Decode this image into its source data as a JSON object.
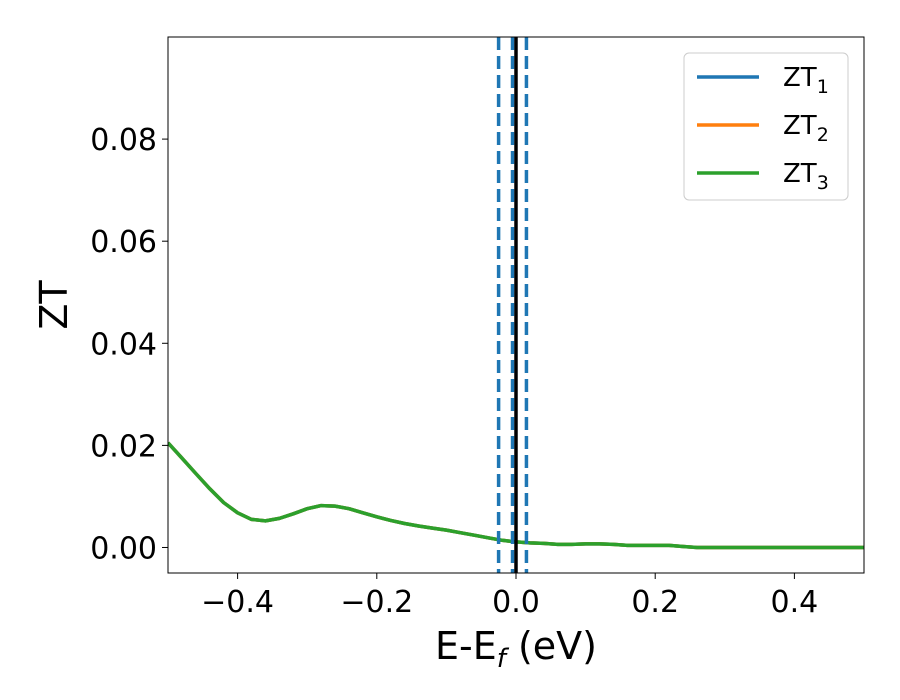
{
  "chart_data": {
    "type": "line",
    "title": "",
    "xlabel": "E-E",
    "xlabel_sub": "f",
    "xlabel_unit": " (eV)",
    "ylabel": "ZT",
    "xlim": [
      -0.5,
      0.5
    ],
    "ylim": [
      -0.005,
      0.1
    ],
    "xticks": [
      -0.4,
      -0.2,
      0.0,
      0.2,
      0.4
    ],
    "xtick_labels": [
      "−0.4",
      "−0.2",
      "0.0",
      "0.2",
      "0.4"
    ],
    "yticks": [
      0.0,
      0.02,
      0.04,
      0.06,
      0.08
    ],
    "ytick_labels": [
      "0.00",
      "0.02",
      "0.04",
      "0.06",
      "0.08"
    ],
    "grid": false,
    "legend_position": "top-right",
    "x": [
      -0.5,
      -0.48,
      -0.46,
      -0.44,
      -0.42,
      -0.4,
      -0.38,
      -0.36,
      -0.34,
      -0.32,
      -0.3,
      -0.28,
      -0.26,
      -0.24,
      -0.22,
      -0.2,
      -0.18,
      -0.16,
      -0.14,
      -0.12,
      -0.1,
      -0.08,
      -0.06,
      -0.04,
      -0.02,
      0.0,
      0.02,
      0.04,
      0.06,
      0.08,
      0.1,
      0.12,
      0.14,
      0.16,
      0.18,
      0.2,
      0.22,
      0.24,
      0.26,
      0.28,
      0.3,
      0.35,
      0.4,
      0.45,
      0.5
    ],
    "series": [
      {
        "name": "ZT",
        "name_sub": "1",
        "color": "#1f77b4",
        "values": [
          0.0205,
          0.0175,
          0.0145,
          0.0115,
          0.0088,
          0.0068,
          0.0055,
          0.0052,
          0.0057,
          0.0066,
          0.0076,
          0.0082,
          0.0081,
          0.0076,
          0.0068,
          0.006,
          0.0053,
          0.0047,
          0.0042,
          0.0038,
          0.0034,
          0.0029,
          0.0024,
          0.0019,
          0.0014,
          0.0011,
          0.0009,
          0.0008,
          0.0006,
          0.0006,
          0.0007,
          0.0007,
          0.0006,
          0.0004,
          0.0004,
          0.0004,
          0.0004,
          0.0002,
          0.0,
          0.0,
          0.0,
          0.0,
          0.0,
          0.0,
          0.0
        ]
      },
      {
        "name": "ZT",
        "name_sub": "2",
        "color": "#ff7f0e",
        "values": [
          0.0205,
          0.0175,
          0.0145,
          0.0115,
          0.0088,
          0.0068,
          0.0055,
          0.0052,
          0.0057,
          0.0066,
          0.0076,
          0.0082,
          0.0081,
          0.0076,
          0.0068,
          0.006,
          0.0053,
          0.0047,
          0.0042,
          0.0038,
          0.0034,
          0.0029,
          0.0024,
          0.0019,
          0.0014,
          0.0011,
          0.0009,
          0.0008,
          0.0006,
          0.0006,
          0.0007,
          0.0007,
          0.0006,
          0.0004,
          0.0004,
          0.0004,
          0.0004,
          0.0002,
          0.0,
          0.0,
          0.0,
          0.0,
          0.0,
          0.0,
          0.0
        ]
      },
      {
        "name": "ZT",
        "name_sub": "3",
        "color": "#2ca02c",
        "values": [
          0.0205,
          0.0175,
          0.0145,
          0.0115,
          0.0088,
          0.0068,
          0.0055,
          0.0052,
          0.0057,
          0.0066,
          0.0076,
          0.0082,
          0.0081,
          0.0076,
          0.0068,
          0.006,
          0.0053,
          0.0047,
          0.0042,
          0.0038,
          0.0034,
          0.0029,
          0.0024,
          0.0019,
          0.0014,
          0.0011,
          0.0009,
          0.0008,
          0.0006,
          0.0006,
          0.0007,
          0.0007,
          0.0006,
          0.0004,
          0.0004,
          0.0004,
          0.0004,
          0.0002,
          0.0,
          0.0,
          0.0,
          0.0,
          0.0,
          0.0,
          0.0
        ]
      }
    ],
    "vlines": [
      {
        "x": -0.025,
        "color": "#1f77b4",
        "style": "dashed"
      },
      {
        "x": -0.005,
        "color": "#1f77b4",
        "style": "dashed"
      },
      {
        "x": 0.015,
        "color": "#1f77b4",
        "style": "dashed"
      },
      {
        "x": 0.0,
        "color": "#000000",
        "style": "solid"
      }
    ]
  }
}
